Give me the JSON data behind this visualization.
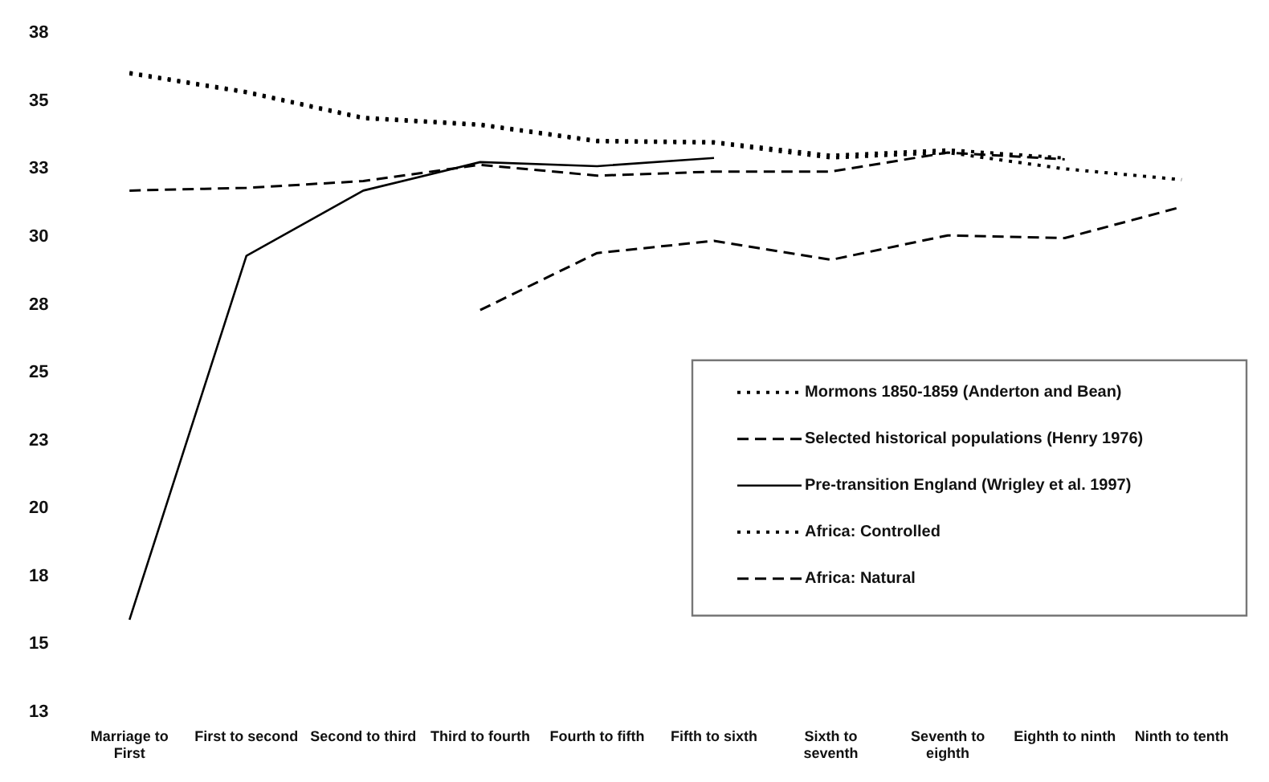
{
  "chart_data": {
    "type": "line",
    "categories": [
      "Marriage to First",
      "First to second",
      "Second to third",
      "Third to fourth",
      "Fourth to fifth",
      "Fifth to sixth",
      "Sixth to seventh",
      "Seventh to eighth",
      "Eighth to ninth",
      "Ninth to tenth"
    ],
    "series": [
      {
        "name": "Mormons 1850-1859 (Anderton and Bean)",
        "color": "#000000",
        "line_style": "dotted",
        "values": [
          36.0,
          35.3,
          34.35,
          34.1,
          33.5,
          33.45,
          32.9,
          33.1,
          32.5,
          32.1
        ]
      },
      {
        "name": "Selected historical populations (Henry 1976)",
        "color": "#000000",
        "line_style": "dashed",
        "values": [
          null,
          null,
          null,
          27.3,
          29.4,
          29.85,
          29.15,
          30.05,
          29.95,
          31.1
        ]
      },
      {
        "name": "Pre-transition England (Wrigley et al. 1997)",
        "color": "#000000",
        "line_style": "solid",
        "values": [
          15.9,
          29.3,
          31.7,
          32.75,
          32.6,
          32.9,
          null,
          null,
          null,
          null
        ]
      },
      {
        "name": "Africa: Controlled",
        "color": "#000000",
        "line_style": "dotted",
        "values": [
          36.05,
          35.35,
          34.4,
          34.15,
          33.55,
          33.5,
          33.0,
          33.2,
          32.9,
          null
        ]
      },
      {
        "name": "Africa: Natural",
        "color": "#000000",
        "line_style": "dashed",
        "values": [
          31.7,
          31.8,
          32.05,
          32.65,
          32.25,
          32.4,
          32.4,
          33.1,
          32.85,
          null
        ]
      }
    ],
    "ylim": [
      12.5,
      37.5
    ],
    "yticks": [
      {
        "value": 12.5,
        "label": "13"
      },
      15,
      {
        "value": 17.5,
        "label": "18"
      },
      20,
      {
        "value": 22.5,
        "label": "23"
      },
      25,
      {
        "value": 27.5,
        "label": "28"
      },
      30,
      {
        "value": 32.5,
        "label": "33"
      },
      35,
      {
        "value": 37.5,
        "label": "38"
      }
    ],
    "grid": false,
    "legend": "bottom right",
    "marker": "none"
  }
}
